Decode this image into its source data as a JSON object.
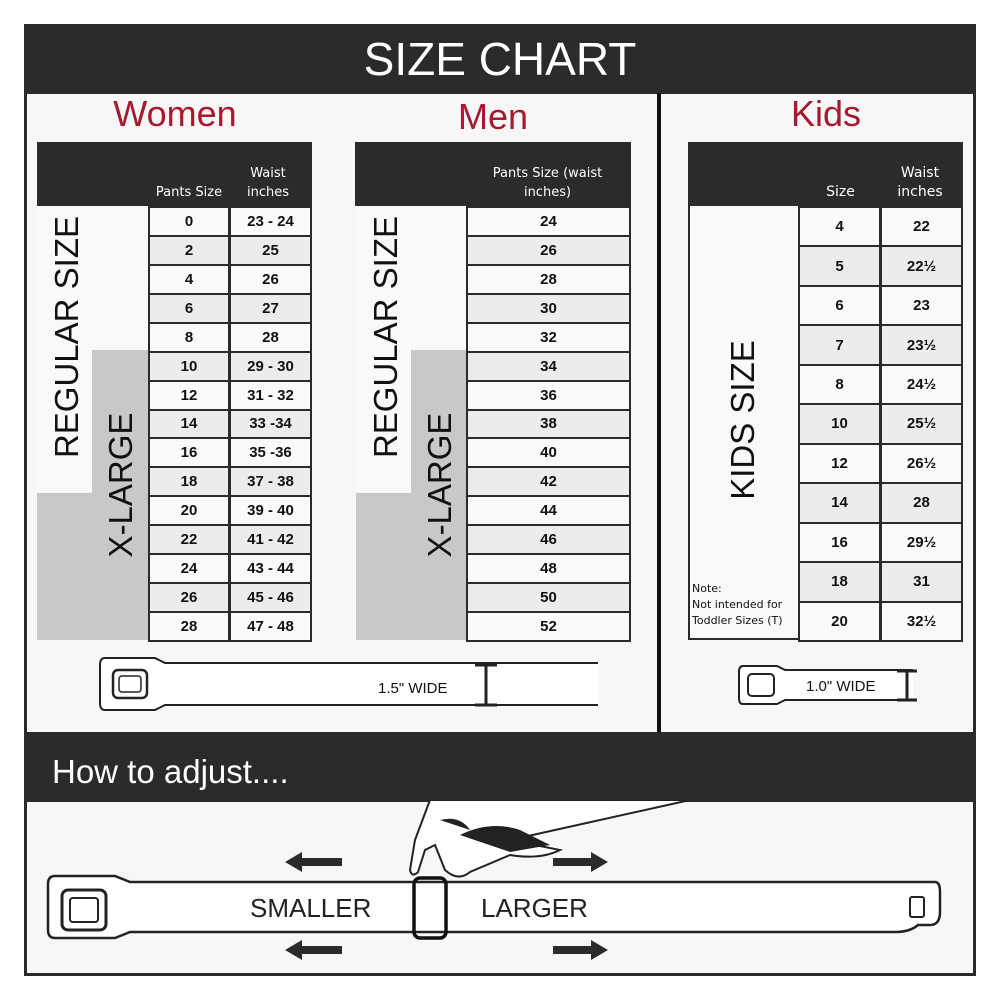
{
  "title": "SIZE CHART",
  "women": {
    "heading": "Women",
    "col1": "Pants Size",
    "col2": "Waist inches",
    "regular_label": "REGULAR SIZE",
    "xlarge_label": "X-LARGE",
    "rows": [
      [
        "0",
        "23 - 24"
      ],
      [
        "2",
        "25"
      ],
      [
        "4",
        "26"
      ],
      [
        "6",
        "27"
      ],
      [
        "8",
        "28"
      ],
      [
        "10",
        "29 - 30"
      ],
      [
        "12",
        "31 - 32"
      ],
      [
        "14",
        "33 -34"
      ],
      [
        "16",
        "35 -36"
      ],
      [
        "18",
        "37 - 38"
      ],
      [
        "20",
        "39 - 40"
      ],
      [
        "22",
        "41 - 42"
      ],
      [
        "24",
        "43 - 44"
      ],
      [
        "26",
        "45 - 46"
      ],
      [
        "28",
        "47 - 48"
      ]
    ]
  },
  "men": {
    "heading": "Men",
    "col1": "Pants Size (waist inches)",
    "regular_label": "REGULAR SIZE",
    "xlarge_label": "X-LARGE",
    "rows": [
      "24",
      "26",
      "28",
      "30",
      "32",
      "34",
      "36",
      "38",
      "40",
      "42",
      "44",
      "46",
      "48",
      "50",
      "52"
    ]
  },
  "kids": {
    "heading": "Kids",
    "col1": "Size",
    "col2": "Waist inches",
    "label": "KIDS SIZE",
    "note": "Note:",
    "note_text": "Not intended for Toddler Sizes (T)",
    "rows": [
      [
        "4",
        "22"
      ],
      [
        "5",
        "22½"
      ],
      [
        "6",
        "23"
      ],
      [
        "7",
        "23½"
      ],
      [
        "8",
        "24½"
      ],
      [
        "10",
        "25½"
      ],
      [
        "12",
        "26½"
      ],
      [
        "14",
        "28"
      ],
      [
        "16",
        "29½"
      ],
      [
        "18",
        "31"
      ],
      [
        "20",
        "32½"
      ]
    ]
  },
  "adult_belt_width": "1.5\" WIDE",
  "kids_belt_width": "1.0\" WIDE",
  "adjust": {
    "title": "How to adjust....",
    "smaller": "SMALLER",
    "larger": "LARGER"
  },
  "colors": {
    "accent": "#a6192e",
    "dark": "#2b2b2b",
    "xlarge": "#c8c8c8"
  }
}
